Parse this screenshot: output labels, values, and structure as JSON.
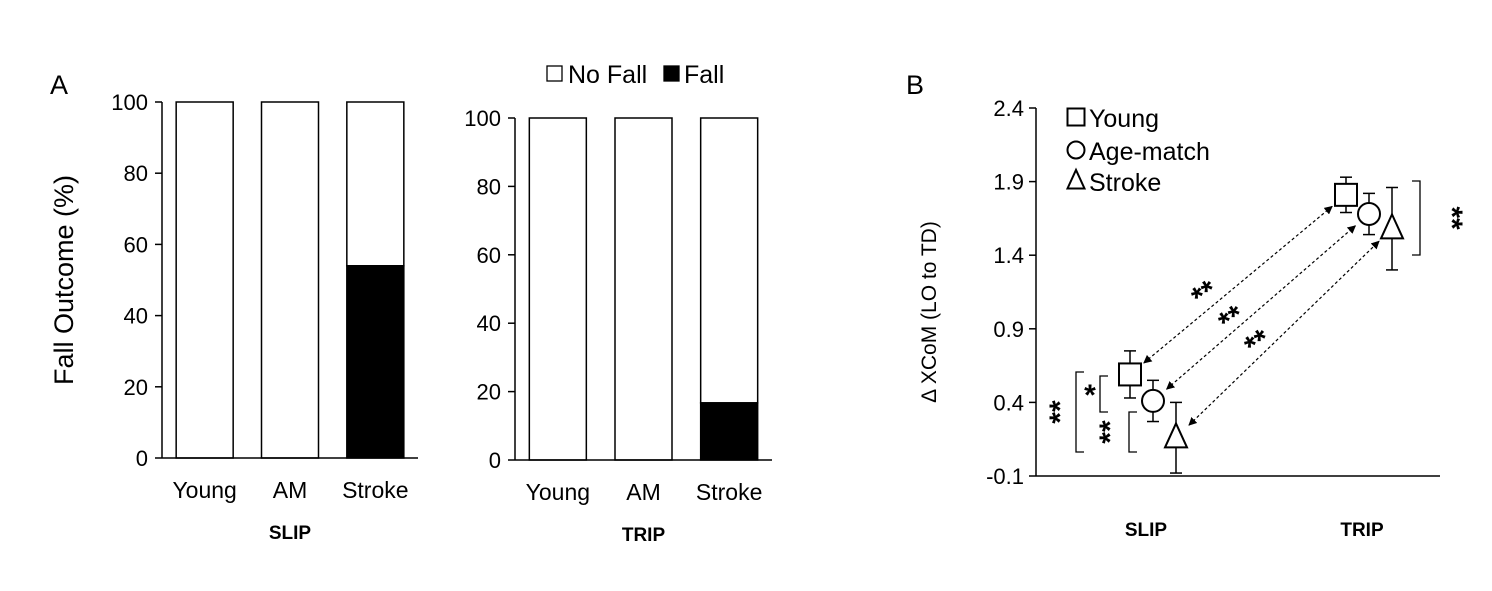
{
  "panel_a_label": "A",
  "panel_b_label": "B",
  "legend_a": {
    "no_fall": "No Fall",
    "fall": "Fall"
  },
  "colors": {
    "no_fall": "#ffffff",
    "fall": "#000000",
    "axis": "#000000"
  },
  "chart_data": [
    {
      "type": "bar",
      "stacked": true,
      "categories": [
        "Young",
        "AM",
        "Stroke"
      ],
      "series": [
        {
          "name": "Fall",
          "values": [
            0,
            0,
            54
          ]
        },
        {
          "name": "No Fall",
          "values": [
            100,
            100,
            46
          ]
        }
      ],
      "ylabel": "Fall Outcome (%)",
      "xlabel": "SLIP",
      "ylim": [
        0,
        100
      ],
      "yticks": [
        0,
        20,
        40,
        60,
        80,
        100
      ]
    },
    {
      "type": "bar",
      "stacked": true,
      "categories": [
        "Young",
        "AM",
        "Stroke"
      ],
      "series": [
        {
          "name": "Fall",
          "values": [
            0,
            0,
            16.7
          ]
        },
        {
          "name": "No Fall",
          "values": [
            100,
            100,
            83.3
          ]
        }
      ],
      "xlabel": "TRIP",
      "ylim": [
        0,
        100
      ],
      "yticks": [
        0,
        20,
        40,
        60,
        80,
        100
      ],
      "legend": "top"
    },
    {
      "type": "scatter",
      "categories": [
        "SLIP",
        "TRIP"
      ],
      "ylabel": "Δ XCoM (LO to TD)",
      "ylim": [
        -0.1,
        2.4
      ],
      "yticks": [
        "-0.1",
        "0.4",
        "0.9",
        "1.4",
        "1.9",
        "2.4"
      ],
      "legend": "top-left",
      "series": [
        {
          "name": "Young",
          "marker": "square",
          "values": [
            0.59,
            1.81
          ],
          "error": [
            0.16,
            0.12
          ]
        },
        {
          "name": "Age-match",
          "marker": "circle",
          "values": [
            0.41,
            1.68
          ],
          "error": [
            0.14,
            0.14
          ]
        },
        {
          "name": "Stroke",
          "marker": "triangle",
          "values": [
            0.16,
            1.58
          ],
          "error": [
            0.24,
            0.28
          ]
        }
      ],
      "annotations": {
        "slip_young_agematch": "*",
        "slip_young_stroke": "**",
        "slip_agematch_stroke": "**",
        "trip_young_stroke": "**",
        "slip_vs_trip": [
          "**",
          "**",
          "**"
        ]
      }
    }
  ]
}
